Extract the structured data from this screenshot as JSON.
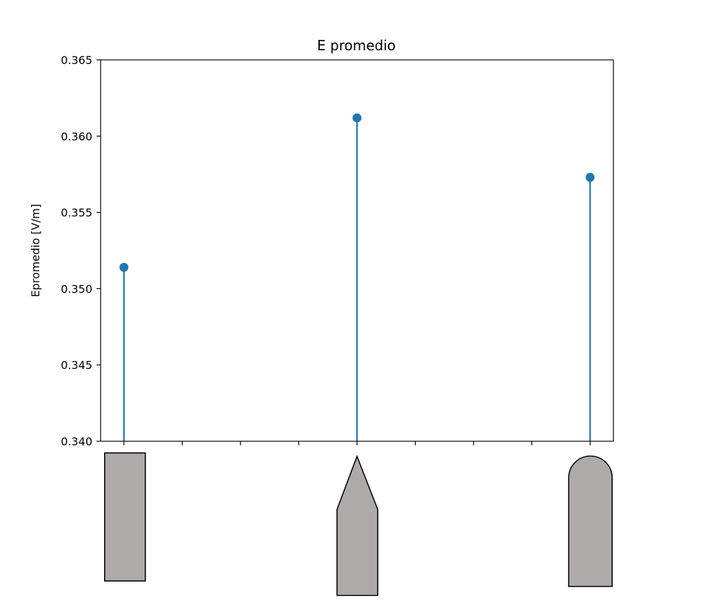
{
  "chart_data": {
    "type": "stem",
    "title": "E promedio",
    "xlabel": "",
    "ylabel": "Epromedio [V/m]",
    "ylim": [
      0.34,
      0.365
    ],
    "xlim": [
      -0.1,
      2.1
    ],
    "yticks": [
      "0.340",
      "0.345",
      "0.350",
      "0.355",
      "0.360",
      "0.365"
    ],
    "ytick_values": [
      0.34,
      0.345,
      0.35,
      0.355,
      0.36,
      0.365
    ],
    "xtick_values": [
      0,
      0.25,
      0.5,
      0.75,
      1.0,
      1.25,
      1.5,
      1.75,
      2.0
    ],
    "x": [
      0,
      1,
      2
    ],
    "values": [
      0.3514,
      0.3612,
      0.3573
    ],
    "electrode_shapes": [
      "flat-rectangle",
      "pointed-tip",
      "rounded-tip"
    ],
    "colors": {
      "series": "#1f77b4",
      "electrode_fill": "#aeaaaa",
      "electrode_stroke": "#000000"
    },
    "grid": false,
    "legend": "none"
  }
}
